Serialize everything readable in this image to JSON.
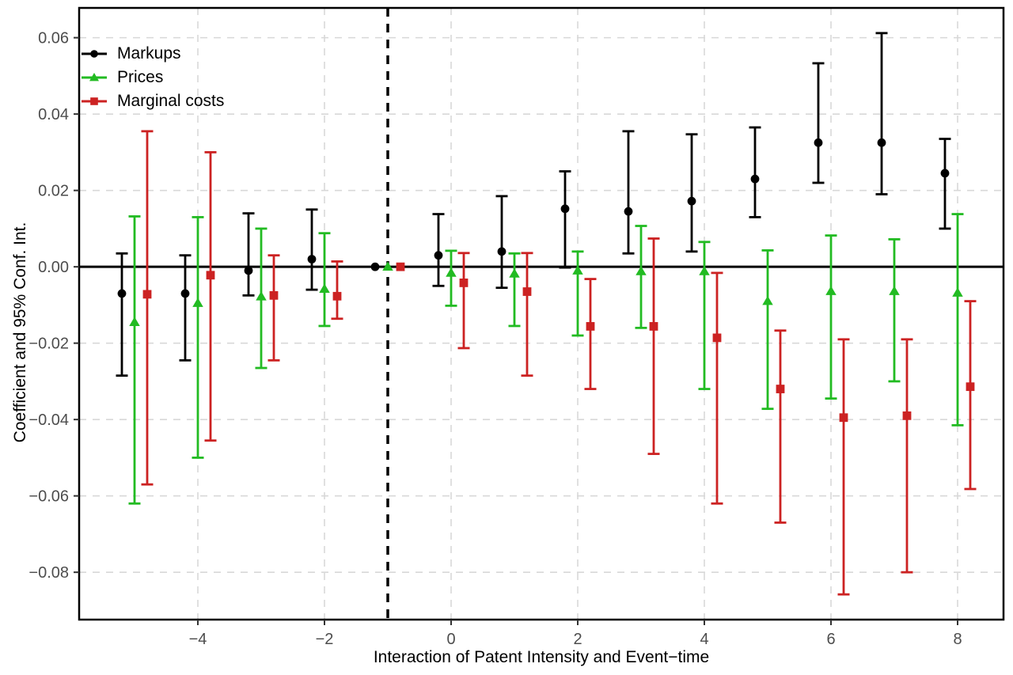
{
  "figure": {
    "background": "#ffffff"
  },
  "chart_data": {
    "type": "errorbar",
    "title": "",
    "xlabel": "Interaction of Patent Intensity and Event−time",
    "ylabel": "Coefficient and 95% Conf. Int.",
    "xlim": [
      -5.875,
      8.725
    ],
    "ylim": [
      -0.0924,
      0.0678
    ],
    "grid": true,
    "legend_position": "top-left",
    "reference_line_x": -1,
    "zero_line_y": 0,
    "x_ticks": [
      {
        "v": -4,
        "label": "−4"
      },
      {
        "v": -2,
        "label": "−2"
      },
      {
        "v": 0,
        "label": "0"
      },
      {
        "v": 2,
        "label": "2"
      },
      {
        "v": 4,
        "label": "4"
      },
      {
        "v": 6,
        "label": "6"
      },
      {
        "v": 8,
        "label": "8"
      }
    ],
    "y_ticks": [
      {
        "v": 0.06,
        "label": "0.06"
      },
      {
        "v": 0.04,
        "label": "0.04"
      },
      {
        "v": 0.02,
        "label": "0.02"
      },
      {
        "v": 0.0,
        "label": "0.00"
      },
      {
        "v": -0.02,
        "label": "−0.02"
      },
      {
        "v": -0.04,
        "label": "−0.04"
      },
      {
        "v": -0.06,
        "label": "−0.06"
      },
      {
        "v": -0.08,
        "label": "−0.08"
      }
    ],
    "series": [
      {
        "name": "Markups",
        "slug": "markups",
        "color": "#000000",
        "marker": "circle",
        "dodge": -0.2,
        "points": [
          {
            "x": -5,
            "est": -0.007,
            "lo": -0.0285,
            "hi": 0.0035
          },
          {
            "x": -4,
            "est": -0.007,
            "lo": -0.0245,
            "hi": 0.003
          },
          {
            "x": -3,
            "est": -0.001,
            "lo": -0.0075,
            "hi": 0.014
          },
          {
            "x": -2,
            "est": 0.002,
            "lo": -0.006,
            "hi": 0.015
          },
          {
            "x": -1,
            "est": 0.0,
            "lo": 0.0,
            "hi": 0.0
          },
          {
            "x": 0,
            "est": 0.003,
            "lo": -0.005,
            "hi": 0.0138
          },
          {
            "x": 1,
            "est": 0.004,
            "lo": -0.0055,
            "hi": 0.0185
          },
          {
            "x": 2,
            "est": 0.0152,
            "lo": -0.0002,
            "hi": 0.025
          },
          {
            "x": 3,
            "est": 0.0145,
            "lo": 0.0035,
            "hi": 0.0355
          },
          {
            "x": 4,
            "est": 0.0172,
            "lo": 0.004,
            "hi": 0.0347
          },
          {
            "x": 5,
            "est": 0.023,
            "lo": 0.013,
            "hi": 0.0365
          },
          {
            "x": 6,
            "est": 0.0325,
            "lo": 0.022,
            "hi": 0.0533
          },
          {
            "x": 7,
            "est": 0.0325,
            "lo": 0.019,
            "hi": 0.0612
          },
          {
            "x": 8,
            "est": 0.0245,
            "lo": 0.01,
            "hi": 0.0335
          }
        ]
      },
      {
        "name": "Prices",
        "slug": "prices",
        "color": "#22BB22",
        "marker": "triangle",
        "dodge": 0,
        "points": [
          {
            "x": -5,
            "est": -0.0145,
            "lo": -0.062,
            "hi": 0.0132
          },
          {
            "x": -4,
            "est": -0.0095,
            "lo": -0.05,
            "hi": 0.013
          },
          {
            "x": -3,
            "est": -0.0078,
            "lo": -0.0265,
            "hi": 0.01
          },
          {
            "x": -2,
            "est": -0.0058,
            "lo": -0.0155,
            "hi": 0.0088
          },
          {
            "x": -1,
            "est": 0.0,
            "lo": 0.0,
            "hi": 0.0
          },
          {
            "x": 0,
            "est": -0.0016,
            "lo": -0.0102,
            "hi": 0.0042
          },
          {
            "x": 1,
            "est": -0.0018,
            "lo": -0.0155,
            "hi": 0.0035
          },
          {
            "x": 2,
            "est": -0.001,
            "lo": -0.018,
            "hi": 0.004
          },
          {
            "x": 3,
            "est": -0.0012,
            "lo": -0.016,
            "hi": 0.0107
          },
          {
            "x": 4,
            "est": -0.0012,
            "lo": -0.032,
            "hi": 0.0065
          },
          {
            "x": 5,
            "est": -0.009,
            "lo": -0.0372,
            "hi": 0.0043
          },
          {
            "x": 6,
            "est": -0.0064,
            "lo": -0.0345,
            "hi": 0.0082
          },
          {
            "x": 7,
            "est": -0.0064,
            "lo": -0.03,
            "hi": 0.0072
          },
          {
            "x": 8,
            "est": -0.0068,
            "lo": -0.0415,
            "hi": 0.0138
          }
        ]
      },
      {
        "name": "Marginal costs",
        "slug": "marginal-costs",
        "color": "#CC2222",
        "marker": "square",
        "dodge": 0.2,
        "points": [
          {
            "x": -5,
            "est": -0.0072,
            "lo": -0.057,
            "hi": 0.0355
          },
          {
            "x": -4,
            "est": -0.0022,
            "lo": -0.0455,
            "hi": 0.03
          },
          {
            "x": -3,
            "est": -0.0075,
            "lo": -0.0245,
            "hi": 0.003
          },
          {
            "x": -2,
            "est": -0.0077,
            "lo": -0.0136,
            "hi": 0.0014
          },
          {
            "x": -1,
            "est": 0.0,
            "lo": 0.0,
            "hi": 0.0
          },
          {
            "x": 0,
            "est": -0.0042,
            "lo": -0.0213,
            "hi": 0.0036
          },
          {
            "x": 1,
            "est": -0.0065,
            "lo": -0.0285,
            "hi": 0.0036
          },
          {
            "x": 2,
            "est": -0.0156,
            "lo": -0.032,
            "hi": -0.0032
          },
          {
            "x": 3,
            "est": -0.0156,
            "lo": -0.049,
            "hi": 0.0074
          },
          {
            "x": 4,
            "est": -0.0186,
            "lo": -0.062,
            "hi": -0.0016
          },
          {
            "x": 5,
            "est": -0.032,
            "lo": -0.067,
            "hi": -0.0167
          },
          {
            "x": 6,
            "est": -0.0395,
            "lo": -0.0858,
            "hi": -0.019
          },
          {
            "x": 7,
            "est": -0.039,
            "lo": -0.08,
            "hi": -0.019
          },
          {
            "x": 8,
            "est": -0.0314,
            "lo": -0.0582,
            "hi": -0.009
          }
        ]
      }
    ],
    "style": {
      "grid_color": "#d8d8d8",
      "tick_label_color": "#4d4d4d",
      "axis_color": "#000000"
    }
  }
}
